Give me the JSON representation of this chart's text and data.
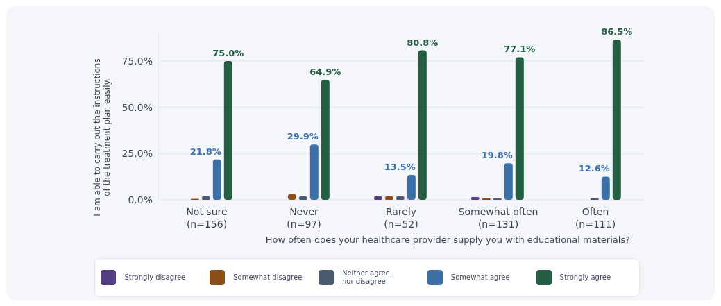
{
  "chart_data": {
    "type": "bar",
    "xlabel": "How often does your healthcare provider supply you with educational materials?",
    "ylabel": "I am able to carry out the instructions\nof the treatment plan easily.",
    "categories": [
      "Not sure\n(n=156)",
      "Never\n(n=97)",
      "Rarely\n(n=52)",
      "Somewhat often\n(n=131)",
      "Often\n(n=111)"
    ],
    "series": [
      {
        "name": "Strongly disagree",
        "color": "#553f82",
        "values": [
          0,
          0,
          1.9,
          1.5,
          0
        ]
      },
      {
        "name": "Somewhat disagree",
        "color": "#8b4c16",
        "values": [
          0.6,
          3.2,
          1.9,
          0.8,
          0
        ]
      },
      {
        "name": "Neither agree\nnor disagree",
        "color": "#495a6e",
        "values": [
          1.9,
          1.9,
          1.9,
          0.8,
          0.9
        ]
      },
      {
        "name": "Somewhat agree",
        "color": "#3a6fa8",
        "values": [
          21.8,
          29.9,
          13.5,
          19.8,
          12.6
        ],
        "value_labels": [
          "21.8%",
          "29.9%",
          "13.5%",
          "19.8%",
          "12.6%"
        ]
      },
      {
        "name": "Strongly agree",
        "color": "#245e43",
        "values": [
          75.0,
          64.9,
          80.8,
          77.1,
          86.5
        ],
        "value_labels": [
          "75.0%",
          "64.9%",
          "80.8%",
          "77.1%",
          "86.5%"
        ]
      }
    ],
    "ylim": [
      0,
      90
    ],
    "yticks": [
      {
        "value": 0,
        "label": "0.0%"
      },
      {
        "value": 25,
        "label": "25.0%"
      },
      {
        "value": 50,
        "label": "50.0%"
      },
      {
        "value": 75,
        "label": "75.0%"
      }
    ],
    "grid": "y",
    "legend": "bottom"
  }
}
